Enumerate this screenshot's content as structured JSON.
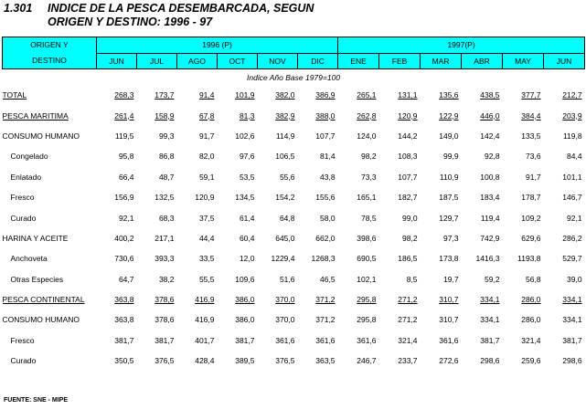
{
  "title": {
    "number": "1.301",
    "line1": "INDICE DE LA PESCA DESEMBARCADA, SEGUN",
    "line2": "ORIGEN Y DESTINO: 1996 - 97"
  },
  "header": {
    "origin_line1": "ORIGEN Y",
    "origin_line2": "DESTINO",
    "year1": "1996 (P)",
    "year2": "1997(P)",
    "months": [
      "JUN",
      "JUL",
      "AGO",
      "OCT",
      "NOV",
      "DIC",
      "ENE",
      "FEB",
      "MAR",
      "ABR",
      "MAY",
      "JUN"
    ]
  },
  "base_note": "Indice Año Base 1979=100",
  "rows": [
    {
      "label": "TOTAL",
      "values": [
        "268,3",
        "173,7",
        "91,4",
        "101,9",
        "382,0",
        "386,9",
        "265,1",
        "131,1",
        "135,6",
        "438,5",
        "377,7",
        "212,7"
      ]
    },
    {
      "label": "PESCA MARITIMA",
      "values": [
        "261,4",
        "158,9",
        "67,8",
        "81,3",
        "382,9",
        "388,0",
        "262,8",
        "120,9",
        "122,9",
        "446,0",
        "384,4",
        "203,9"
      ]
    },
    {
      "label": "CONSUMO HUMANO",
      "values": [
        "119,5",
        "99,3",
        "91,7",
        "102,6",
        "114,9",
        "107,7",
        "124,0",
        "144,2",
        "149,0",
        "142,4",
        "133,5",
        "119,8"
      ]
    },
    {
      "label": "Congelado",
      "values": [
        "95,8",
        "86,8",
        "82,0",
        "97,6",
        "106,5",
        "81,4",
        "98,2",
        "108,3",
        "99,9",
        "92,8",
        "73,6",
        "84,4"
      ]
    },
    {
      "label": "Enlatado",
      "values": [
        "66,4",
        "48,7",
        "59,1",
        "53,5",
        "55,6",
        "43,8",
        "73,3",
        "107,7",
        "110,9",
        "100,8",
        "91,7",
        "101,1"
      ]
    },
    {
      "label": "Fresco",
      "values": [
        "156,9",
        "132,5",
        "120,9",
        "134,5",
        "154,2",
        "155,6",
        "165,1",
        "182,7",
        "187,5",
        "183,4",
        "178,7",
        "146,7"
      ]
    },
    {
      "label": "Curado",
      "values": [
        "92,1",
        "68,3",
        "37,5",
        "61,4",
        "64,8",
        "58,0",
        "78,5",
        "99,0",
        "129,7",
        "119,4",
        "109,2",
        "92,1"
      ]
    },
    {
      "label": "HARINA Y ACEITE",
      "values": [
        "400,2",
        "217,1",
        "44,4",
        "60,4",
        "645,0",
        "662,0",
        "398,6",
        "98,2",
        "97,3",
        "742,9",
        "629,6",
        "286,2"
      ]
    },
    {
      "label": "Anchoveta",
      "values": [
        "730,6",
        "393,3",
        "33,5",
        "12,0",
        "1229,4",
        "1268,3",
        "690,5",
        "186,5",
        "173,8",
        "1416,3",
        "1193,8",
        "529,7"
      ]
    },
    {
      "label": "Otras Especies",
      "values": [
        "64,7",
        "38,2",
        "55,5",
        "109,6",
        "51,6",
        "46,5",
        "102,1",
        "8,5",
        "19,7",
        "59,2",
        "56,8",
        "39,0"
      ]
    },
    {
      "label": "PESCA CONTINENTAL",
      "values": [
        "363,8",
        "378,6",
        "416,9",
        "386,0",
        "370,0",
        "371,2",
        "295,8",
        "271,2",
        "310,7",
        "334,1",
        "286,0",
        "334,1"
      ]
    },
    {
      "label": "CONSUMO HUMANO",
      "values": [
        "363,8",
        "378,6",
        "416,9",
        "386,0",
        "370,0",
        "371,2",
        "295,8",
        "271,2",
        "310,7",
        "334,1",
        "286,0",
        "334,1"
      ]
    },
    {
      "label": "Fresco",
      "values": [
        "381,7",
        "381,7",
        "401,7",
        "381,7",
        "361,6",
        "361,6",
        "361,6",
        "321,4",
        "361,6",
        "381,7",
        "321,4",
        "381,7"
      ]
    },
    {
      "label": "Curado",
      "values": [
        "350,5",
        "376,5",
        "428,4",
        "389,5",
        "376,5",
        "363,5",
        "246,7",
        "233,7",
        "272,6",
        "298,6",
        "259,6",
        "298,6"
      ]
    }
  ],
  "source": "FUENTE:   SNE - MIPE"
}
